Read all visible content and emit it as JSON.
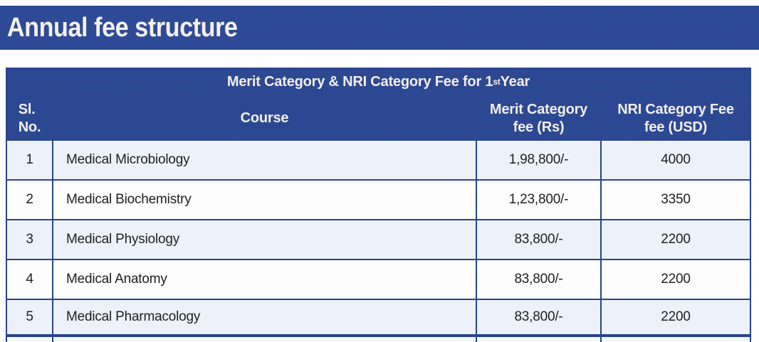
{
  "banner": {
    "title": "Annual fee structure"
  },
  "table": {
    "header_title": {
      "prefix": "Merit Category & NRI Category Fee for 1",
      "superscript": "st",
      "suffix": " Year"
    },
    "columns": {
      "sl_no": {
        "line1": "Sl.",
        "line2": "No."
      },
      "course": {
        "label": "Course"
      },
      "merit": {
        "line1": "Merit Category",
        "line2": "fee (Rs)"
      },
      "nri": {
        "line1": "NRI Category Fee",
        "line2": "fee (USD)"
      }
    },
    "rows": [
      {
        "sl_no": "1",
        "course": "Medical Microbiology",
        "merit_fee": "1,98,800/-",
        "nri_fee": "4000"
      },
      {
        "sl_no": "2",
        "course": "Medical Biochemistry",
        "merit_fee": "1,23,800/-",
        "nri_fee": "3350"
      },
      {
        "sl_no": "3",
        "course": "Medical Physiology",
        "merit_fee": "83,800/-",
        "nri_fee": "2200"
      },
      {
        "sl_no": "4",
        "course": "Medical Anatomy",
        "merit_fee": "83,800/-",
        "nri_fee": "2200"
      },
      {
        "sl_no": "5",
        "course": "Medical Pharmacology",
        "merit_fee": "83,800/-",
        "nri_fee": "2200"
      }
    ]
  },
  "colors": {
    "banner_blue": "#2b4b98",
    "header_blue": "#2a4994",
    "border_navy": "#27458e",
    "row_alt": "#edf2fa",
    "row_white": "#fdfdfd",
    "text_dark": "#202022",
    "text_white": "#f2efec"
  }
}
